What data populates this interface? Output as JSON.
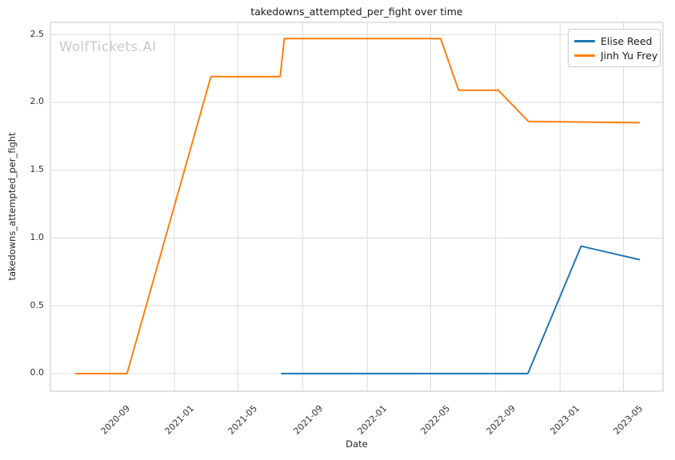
{
  "watermark": "WolfTickets.AI",
  "chart_data": {
    "type": "line",
    "title": "takedowns_attempted_per_fight over time",
    "xlabel": "Date",
    "ylabel": "takedowns_attempted_per_fight",
    "grid": true,
    "legend_position": "upper right",
    "x_ticks": [
      "2020-09",
      "2021-01",
      "2021-05",
      "2021-09",
      "2022-01",
      "2022-05",
      "2022-09",
      "2023-01",
      "2023-05"
    ],
    "y_ticks": [
      "0.0",
      "0.5",
      "1.0",
      "1.5",
      "2.0",
      "2.5"
    ],
    "x_domain": [
      "2020-05-11",
      "2023-07-15"
    ],
    "ylim": [
      -0.13,
      2.59
    ],
    "grid_color": "#dcdcdc",
    "spine_color": "#c6c6c6",
    "series": [
      {
        "name": "Elise Reed",
        "color": "#1f77b4",
        "points": [
          [
            "2021-07-22",
            0.0
          ],
          [
            "2022-11-01",
            0.0
          ],
          [
            "2023-02-10",
            0.94
          ],
          [
            "2023-06-01",
            0.84
          ]
        ]
      },
      {
        "name": "Jinh Yu Frey",
        "color": "#ff7f0e",
        "points": [
          [
            "2020-06-27",
            0.0
          ],
          [
            "2020-10-03",
            0.0
          ],
          [
            "2021-03-11",
            2.19
          ],
          [
            "2021-07-20",
            2.19
          ],
          [
            "2021-07-28",
            2.47
          ],
          [
            "2022-05-20",
            2.47
          ],
          [
            "2022-06-23",
            2.09
          ],
          [
            "2022-09-06",
            2.09
          ],
          [
            "2022-11-02",
            1.86
          ],
          [
            "2023-06-01",
            1.85
          ]
        ]
      }
    ]
  }
}
